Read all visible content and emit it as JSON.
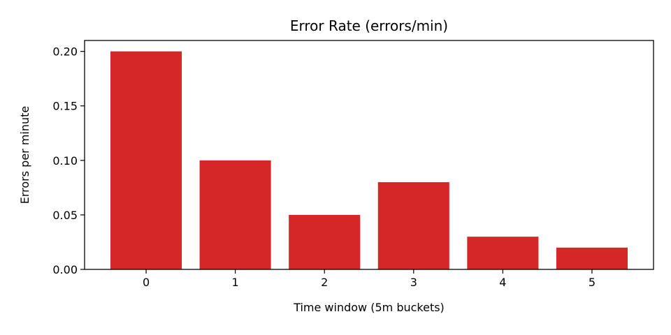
{
  "chart_data": {
    "type": "bar",
    "title": "Error Rate (errors/min)",
    "xlabel": "Time window (5m buckets)",
    "ylabel": "Errors per minute",
    "categories": [
      "0",
      "1",
      "2",
      "3",
      "4",
      "5"
    ],
    "values": [
      0.2,
      0.1,
      0.05,
      0.08,
      0.03,
      0.02
    ],
    "yticks": [
      "0.00",
      "0.05",
      "0.10",
      "0.15",
      "0.20"
    ],
    "ylim": [
      0,
      0.21
    ],
    "grid": false,
    "legend": "none",
    "bar_color": "#d62728"
  }
}
